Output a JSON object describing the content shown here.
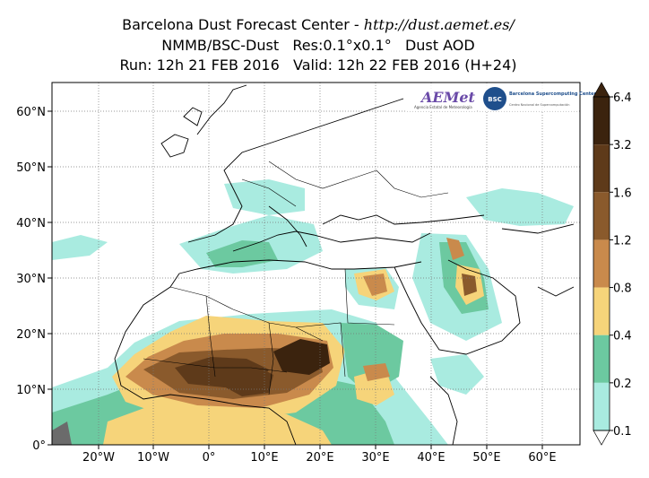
{
  "title": {
    "line1_prefix": "Barcelona Dust Forecast Center - ",
    "line1_url": "http://dust.aemet.es/",
    "line2": "NMMB/BSC-Dust   Res:0.1°x0.1°   Dust AOD",
    "line3": "Run: 12h 21 FEB 2016   Valid: 12h 22 FEB 2016 (H+24)"
  },
  "logos": {
    "aemet": "AEMet",
    "aemet_sub": "Agencia Estatal de Meteorología",
    "bsc_badge": "BSC",
    "bsc_name": "Barcelona Supercomputing Center",
    "bsc_sub": "Centro Nacional de Supercomputación"
  },
  "axes": {
    "x_ticks": [
      "20°W",
      "10°W",
      "0°",
      "10°E",
      "20°E",
      "30°E",
      "40°E",
      "50°E",
      "60°E"
    ],
    "y_ticks": [
      "60°N",
      "50°N",
      "40°N",
      "30°N",
      "20°N",
      "10°N",
      "0°"
    ]
  },
  "colorbar": {
    "labels": [
      "6.4",
      "3.2",
      "1.6",
      "1.2",
      "0.8",
      "0.4",
      "0.2",
      "0.1"
    ],
    "colors": [
      "#3b230e",
      "#5e3a1a",
      "#8a5a2c",
      "#c98a4c",
      "#f6d47a",
      "#6cc9a0",
      "#a9ebe0"
    ],
    "under_color": "#ffffff",
    "over_color": "#3b230e"
  }
}
